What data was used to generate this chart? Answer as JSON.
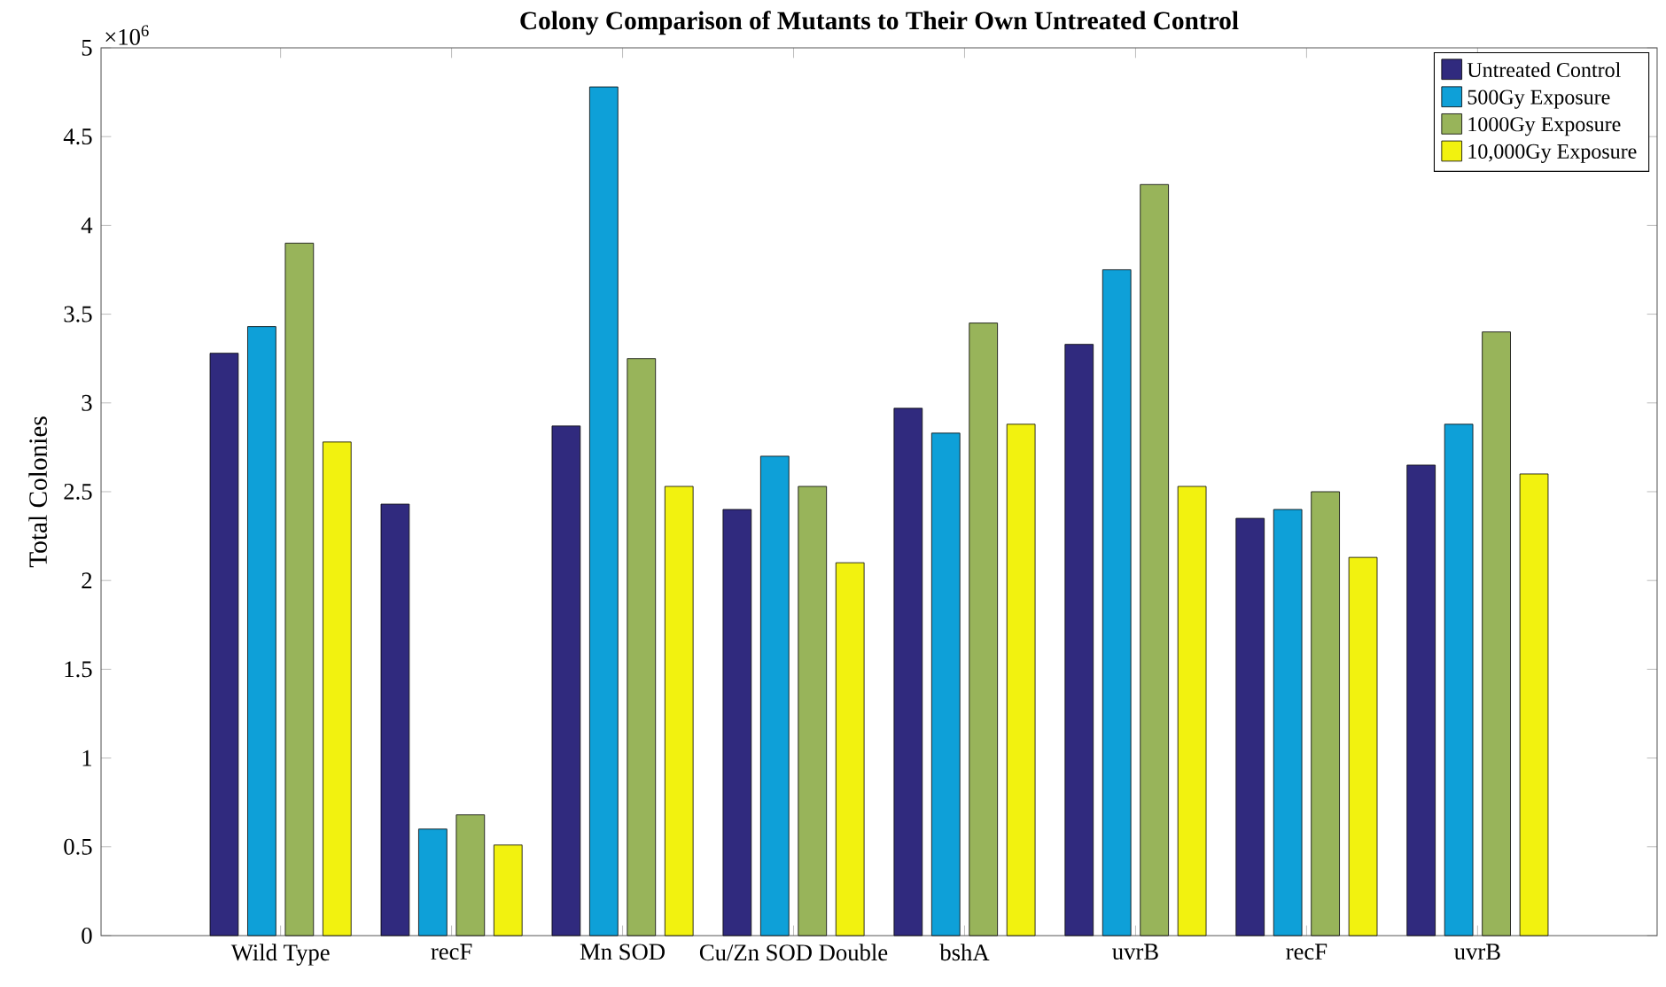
{
  "chart_data": {
    "type": "bar",
    "title": "Colony Comparison of Mutants to Their Own Untreated Control",
    "ylabel": "Total Colonies",
    "categories": [
      "Wild Type",
      "recF",
      "Mn SOD",
      "Cu/Zn SOD Double",
      "bshA",
      "uvrB",
      "recF",
      "uvrB"
    ],
    "series": [
      {
        "name": "Untreated Control",
        "color": "#302a7e",
        "values": [
          3.28,
          2.43,
          2.87,
          2.4,
          2.97,
          3.33,
          2.35,
          2.65
        ]
      },
      {
        "name": "500Gy Exposure",
        "color": "#0ea0d8",
        "values": [
          3.43,
          0.6,
          4.78,
          2.7,
          2.83,
          3.75,
          2.4,
          2.88
        ]
      },
      {
        "name": "1000Gy Exposure",
        "color": "#98b45a",
        "values": [
          3.9,
          0.68,
          3.25,
          2.53,
          3.45,
          4.23,
          2.5,
          3.4
        ]
      },
      {
        "name": "10,000Gy Exposure",
        "color": "#f2f20f",
        "values": [
          2.78,
          0.51,
          2.53,
          2.1,
          2.88,
          2.53,
          2.13,
          2.6
        ]
      }
    ],
    "ylim": [
      0,
      5
    ],
    "yticks": [
      0,
      0.5,
      1,
      1.5,
      2,
      2.5,
      3,
      3.5,
      4,
      4.5,
      5
    ],
    "annotations": [
      "×10$^{6}$"
    ],
    "legend": "top right"
  }
}
